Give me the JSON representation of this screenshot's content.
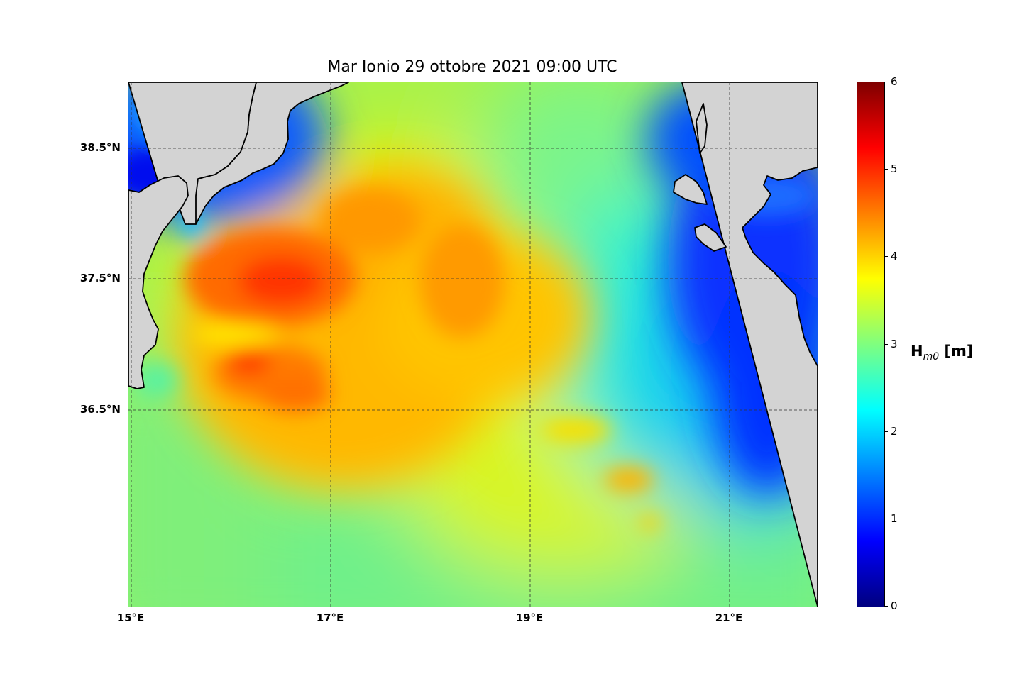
{
  "map": {
    "title": "Mar Ionio  29 ottobre 2021  09:00 UTC",
    "lon_ticks": [
      "15°E",
      "17°E",
      "19°E",
      "21°E"
    ],
    "lat_ticks": [
      "38.5°N",
      "37.5°N",
      "36.5°N"
    ],
    "lon_range": [
      15,
      21.9
    ],
    "lat_range": [
      34.9,
      39.0
    ],
    "land_color": "#d3d3d3",
    "gridlines": true
  },
  "colorbar": {
    "label": "H",
    "label_sub": "m0",
    "label_unit": " [m]",
    "ticks": [
      "0",
      "1",
      "2",
      "3",
      "4",
      "5",
      "6"
    ],
    "range": [
      0,
      6
    ],
    "colormap": "jet"
  }
}
